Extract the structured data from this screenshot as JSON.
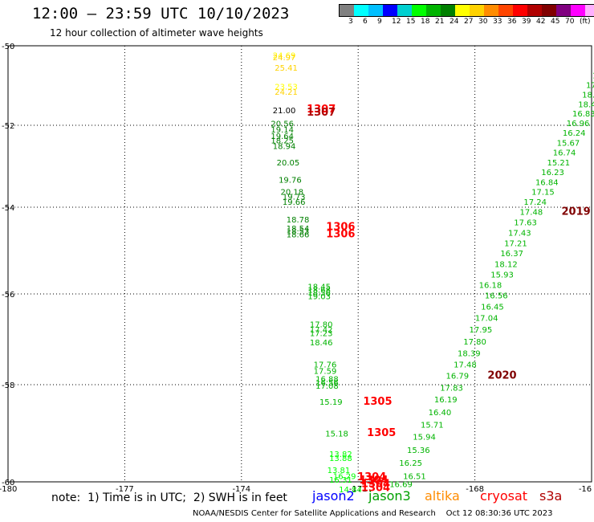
{
  "header": {
    "title": "12:00 – 23:59 UTC 10/10/2023",
    "subtitle": "12 hour collection of altimeter wave heights"
  },
  "legend": {
    "unit": "(ft)",
    "colors": [
      "#808080",
      "#00ffff",
      "#00bfff",
      "#0000ff",
      "#00d0d0",
      "#00ff00",
      "#00b400",
      "#008000",
      "#ffff00",
      "#ffd200",
      "#ff8c00",
      "#ff4500",
      "#ff0000",
      "#b00000",
      "#800000",
      "#800080",
      "#ff00ff",
      "#ffb0ff",
      "#000000"
    ],
    "labels": [
      "3",
      "6",
      "9",
      "12",
      "15",
      "18",
      "21",
      "24",
      "27",
      "30",
      "33",
      "36",
      "39",
      "42",
      "45",
      "70"
    ]
  },
  "axes": {
    "x_ticks": [
      "-180",
      "-177",
      "-174",
      "-171",
      "-168",
      "-16"
    ],
    "y_ticks": [
      "-50",
      "-52",
      "-54",
      "-56",
      "-58",
      "-60"
    ]
  },
  "footer": {
    "note": "note:  1) Time is in UTC;  2) SWH is in feet",
    "satellites": [
      {
        "name": "jason2",
        "color": "#0000ff"
      },
      {
        "name": "jason3",
        "color": "#00a000"
      },
      {
        "name": "altika",
        "color": "#ff8c00"
      },
      {
        "name": "cryosat",
        "color": "#ff0000"
      },
      {
        "name": "s3a",
        "color": "#b00000"
      }
    ],
    "credit": "NOAA/NESDIS Center for Satellite Applications and Research    Oct 12 08:30:36 UTC 2023"
  },
  "chart_data": {
    "type": "scatter",
    "labels": [
      {
        "text": "24.69",
        "lon": -172.9,
        "lat": -50.23,
        "color": "#ffff00"
      },
      {
        "text": "24.97",
        "lon": -172.9,
        "lat": -50.28,
        "color": "#ffd200"
      },
      {
        "text": "25.41",
        "lon": -172.85,
        "lat": -50.55,
        "color": "#ffd200"
      },
      {
        "text": "23.53",
        "lon": -172.85,
        "lat": -51.02,
        "color": "#ffff00"
      },
      {
        "text": "24.21",
        "lon": -172.85,
        "lat": -51.15,
        "color": "#ffd200"
      },
      {
        "text": "21.00",
        "lon": -172.9,
        "lat": -51.62,
        "color": "#000000"
      },
      {
        "text": "1307",
        "lon": -171.95,
        "lat": -51.6,
        "color": "#ff0000"
      },
      {
        "text": "1307",
        "lon": -171.95,
        "lat": -51.68,
        "color": "#b00000"
      },
      {
        "text": "20.56",
        "lon": -172.95,
        "lat": -51.95,
        "color": "#008000"
      },
      {
        "text": "19.14",
        "lon": -172.95,
        "lat": -52.1,
        "color": "#008000"
      },
      {
        "text": "19.64",
        "lon": -172.95,
        "lat": -52.25,
        "color": "#008000"
      },
      {
        "text": "18.25",
        "lon": -172.95,
        "lat": -52.36,
        "color": "#008000"
      },
      {
        "text": "18.94",
        "lon": -172.9,
        "lat": -52.5,
        "color": "#008000"
      },
      {
        "text": "20.05",
        "lon": -172.8,
        "lat": -52.9,
        "color": "#008000"
      },
      {
        "text": "19.76",
        "lon": -172.75,
        "lat": -53.32,
        "color": "#008000"
      },
      {
        "text": "20.18",
        "lon": -172.7,
        "lat": -53.62,
        "color": "#008000"
      },
      {
        "text": "19.73",
        "lon": -172.65,
        "lat": -53.74,
        "color": "#008000"
      },
      {
        "text": "19.66",
        "lon": -172.65,
        "lat": -53.86,
        "color": "#008000"
      },
      {
        "text": "18.78",
        "lon": -172.55,
        "lat": -54.28,
        "color": "#008000"
      },
      {
        "text": "18.54",
        "lon": -172.55,
        "lat": -54.48,
        "color": "#008000"
      },
      {
        "text": "18.53",
        "lon": -172.55,
        "lat": -54.55,
        "color": "#008000"
      },
      {
        "text": "18.66",
        "lon": -172.55,
        "lat": -54.62,
        "color": "#008000"
      },
      {
        "text": "1306",
        "lon": -171.45,
        "lat": -54.45,
        "color": "#ff0000"
      },
      {
        "text": "1306",
        "lon": -171.45,
        "lat": -54.62,
        "color": "#ff0000"
      },
      {
        "text": "18.45",
        "lon": -172.0,
        "lat": -55.82,
        "color": "#00b400"
      },
      {
        "text": "18.68",
        "lon": -172.0,
        "lat": -55.9,
        "color": "#00b400"
      },
      {
        "text": "18.56",
        "lon": -172.0,
        "lat": -55.96,
        "color": "#00b400"
      },
      {
        "text": "19.03",
        "lon": -172.0,
        "lat": -56.04,
        "color": "#00b400"
      },
      {
        "text": "17.80",
        "lon": -171.95,
        "lat": -56.66,
        "color": "#00b400"
      },
      {
        "text": "17.42",
        "lon": -171.95,
        "lat": -56.78,
        "color": "#00b400"
      },
      {
        "text": "17.23",
        "lon": -171.95,
        "lat": -56.86,
        "color": "#00b400"
      },
      {
        "text": "18.46",
        "lon": -171.95,
        "lat": -57.06,
        "color": "#00b400"
      },
      {
        "text": "17.76",
        "lon": -171.85,
        "lat": -57.55,
        "color": "#00b400"
      },
      {
        "text": "17.59",
        "lon": -171.85,
        "lat": -57.69,
        "color": "#00b400"
      },
      {
        "text": "16.88",
        "lon": -171.8,
        "lat": -57.87,
        "color": "#00b400"
      },
      {
        "text": "16.56",
        "lon": -171.8,
        "lat": -57.95,
        "color": "#00b400"
      },
      {
        "text": "17.08",
        "lon": -171.8,
        "lat": -58.02,
        "color": "#00b400"
      },
      {
        "text": "15.19",
        "lon": -171.7,
        "lat": -58.35,
        "color": "#00b400"
      },
      {
        "text": "1305",
        "lon": -170.5,
        "lat": -58.35,
        "color": "#ff0000"
      },
      {
        "text": "15.18",
        "lon": -171.55,
        "lat": -59.0,
        "color": "#00b400"
      },
      {
        "text": "1305",
        "lon": -170.4,
        "lat": -58.99,
        "color": "#ff0000"
      },
      {
        "text": "13.82",
        "lon": -171.45,
        "lat": -59.42,
        "color": "#00ff00"
      },
      {
        "text": "13.88",
        "lon": -171.45,
        "lat": -59.5,
        "color": "#00ff00"
      },
      {
        "text": "13.81",
        "lon": -171.5,
        "lat": -59.75,
        "color": "#00ff00"
      },
      {
        "text": "16.31",
        "lon": -171.45,
        "lat": -59.95,
        "color": "#00ff00"
      },
      {
        "text": "16.29",
        "lon": -171.35,
        "lat": -59.88,
        "color": "#00ff00"
      },
      {
        "text": "1304",
        "lon": -170.65,
        "lat": -59.9,
        "color": "#ff0000"
      },
      {
        "text": "1304",
        "lon": -170.6,
        "lat": -59.97,
        "color": "#ff0000"
      },
      {
        "text": "1304",
        "lon": -170.55,
        "lat": -60.04,
        "color": "#ff0000"
      },
      {
        "text": "1304",
        "lon": -170.55,
        "lat": -60.12,
        "color": "#ff0000"
      },
      {
        "text": "14.84",
        "lon": -171.2,
        "lat": -60.15,
        "color": "#00ff00"
      },
      {
        "text": "16.51",
        "lon": -169.55,
        "lat": -59.88,
        "color": "#00b400"
      },
      {
        "text": "16.69",
        "lon": -169.9,
        "lat": -60.04,
        "color": "#00b400"
      },
      {
        "text": "16.25",
        "lon": -169.65,
        "lat": -59.6,
        "color": "#00b400"
      },
      {
        "text": "15.36",
        "lon": -169.45,
        "lat": -59.34,
        "color": "#00b400"
      },
      {
        "text": "15.94",
        "lon": -169.3,
        "lat": -59.07,
        "color": "#00b400"
      },
      {
        "text": "15.71",
        "lon": -169.1,
        "lat": -58.82,
        "color": "#00b400"
      },
      {
        "text": "16.40",
        "lon": -168.9,
        "lat": -58.56,
        "color": "#00b400"
      },
      {
        "text": "16.19",
        "lon": -168.75,
        "lat": -58.3,
        "color": "#00b400"
      },
      {
        "text": "17.83",
        "lon": -168.6,
        "lat": -58.06,
        "color": "#00b400"
      },
      {
        "text": "16.79",
        "lon": -168.45,
        "lat": -57.8,
        "color": "#00b400"
      },
      {
        "text": "2020",
        "lon": -167.3,
        "lat": -57.8,
        "color": "#800000"
      },
      {
        "text": "17.48",
        "lon": -168.25,
        "lat": -57.55,
        "color": "#00b400"
      },
      {
        "text": "18.39",
        "lon": -168.15,
        "lat": -57.3,
        "color": "#00b400"
      },
      {
        "text": "17.80",
        "lon": -168.0,
        "lat": -57.04,
        "color": "#00b400"
      },
      {
        "text": "17.95",
        "lon": -167.85,
        "lat": -56.78,
        "color": "#00b400"
      },
      {
        "text": "17.04",
        "lon": -167.7,
        "lat": -56.52,
        "color": "#00b400"
      },
      {
        "text": "16.45",
        "lon": -167.55,
        "lat": -56.27,
        "color": "#00b400"
      },
      {
        "text": "16.56",
        "lon": -167.45,
        "lat": -56.03,
        "color": "#00b400"
      },
      {
        "text": "16.18",
        "lon": -167.6,
        "lat": -55.79,
        "color": "#00b400"
      },
      {
        "text": "15.93",
        "lon": -167.3,
        "lat": -55.55,
        "color": "#00b400"
      },
      {
        "text": "18.12",
        "lon": -167.2,
        "lat": -55.31,
        "color": "#00b400"
      },
      {
        "text": "16.37",
        "lon": -167.05,
        "lat": -55.06,
        "color": "#00b400"
      },
      {
        "text": "17.21",
        "lon": -166.95,
        "lat": -54.82,
        "color": "#00b400"
      },
      {
        "text": "17.43",
        "lon": -166.85,
        "lat": -54.58,
        "color": "#00b400"
      },
      {
        "text": "17.63",
        "lon": -166.7,
        "lat": -54.34,
        "color": "#00b400"
      },
      {
        "text": "17.48",
        "lon": -166.55,
        "lat": -54.1,
        "color": "#00b400"
      },
      {
        "text": "2019",
        "lon": -165.4,
        "lat": -54.1,
        "color": "#800000"
      },
      {
        "text": "17.24",
        "lon": -166.45,
        "lat": -53.86,
        "color": "#00b400"
      },
      {
        "text": "17.15",
        "lon": -166.25,
        "lat": -53.62,
        "color": "#00b400"
      },
      {
        "text": "16.84",
        "lon": -166.15,
        "lat": -53.38,
        "color": "#00b400"
      },
      {
        "text": "16.23",
        "lon": -166.0,
        "lat": -53.14,
        "color": "#00b400"
      },
      {
        "text": "15.21",
        "lon": -165.85,
        "lat": -52.9,
        "color": "#00b400"
      },
      {
        "text": "16.74",
        "lon": -165.7,
        "lat": -52.66,
        "color": "#00b400"
      },
      {
        "text": "15.67",
        "lon": -165.6,
        "lat": -52.42,
        "color": "#00b400"
      },
      {
        "text": "16.24",
        "lon": -165.45,
        "lat": -52.18,
        "color": "#00b400"
      },
      {
        "text": "16.96",
        "lon": -165.35,
        "lat": -51.94,
        "color": "#00b400"
      },
      {
        "text": "16.83",
        "lon": -165.2,
        "lat": -51.7,
        "color": "#00b400"
      },
      {
        "text": "18.46",
        "lon": -165.05,
        "lat": -51.46,
        "color": "#00b400"
      },
      {
        "text": "18.16",
        "lon": -164.95,
        "lat": -51.22,
        "color": "#00b400"
      },
      {
        "text": "17.73",
        "lon": -164.85,
        "lat": -50.98,
        "color": "#00b400"
      },
      {
        "text": "17.5",
        "lon": -164.75,
        "lat": -50.74,
        "color": "#00b400"
      },
      {
        "text": "16.",
        "lon": -164.65,
        "lat": -50.5,
        "color": "#00b400"
      },
      {
        "text": "17",
        "lon": -164.55,
        "lat": -50.26,
        "color": "#00b400"
      },
      {
        "text": "1",
        "lon": -164.5,
        "lat": -50.02,
        "color": "#00b400"
      }
    ]
  }
}
